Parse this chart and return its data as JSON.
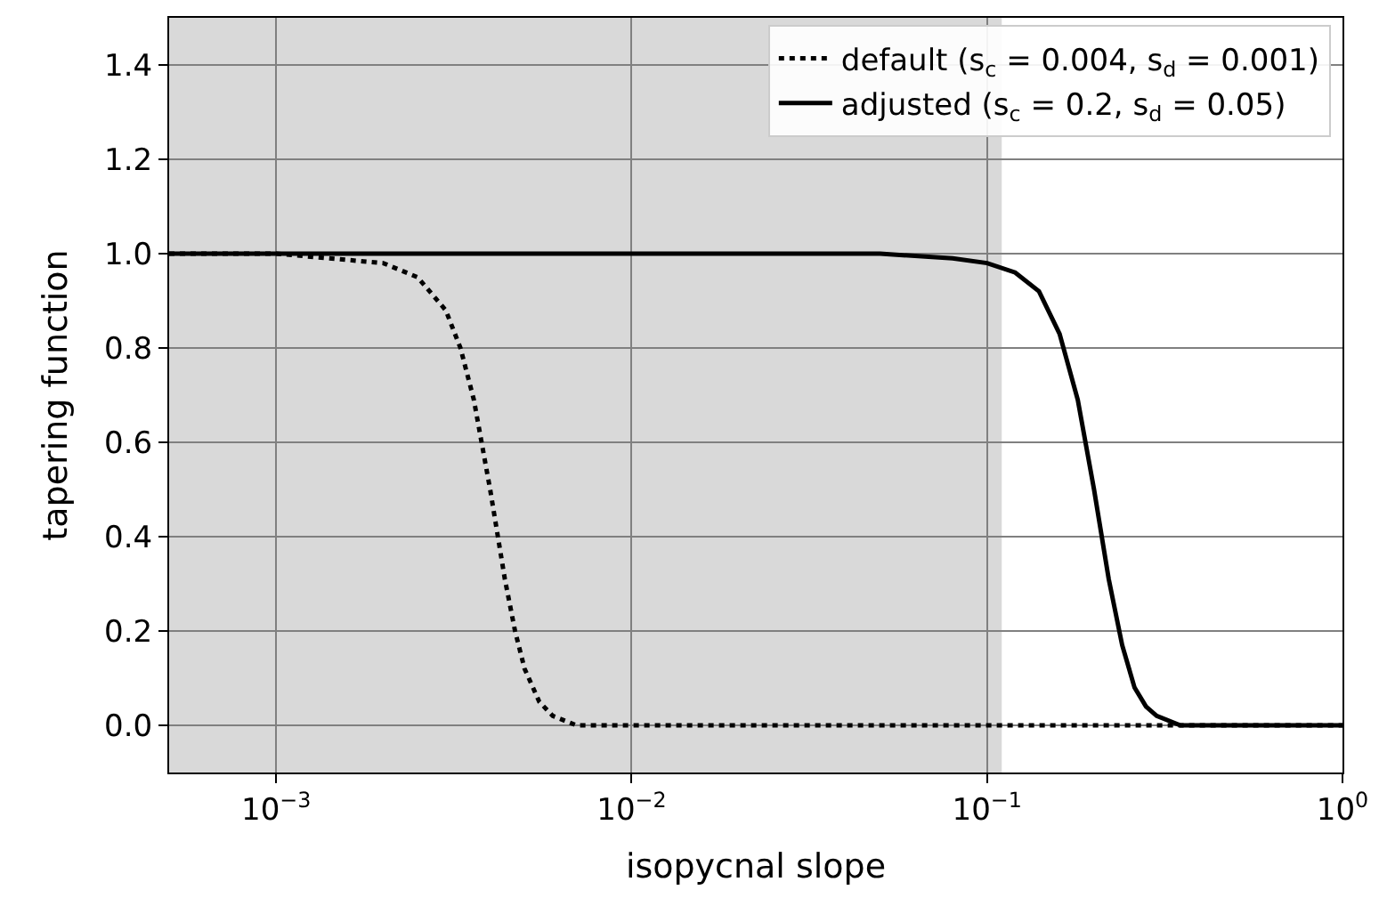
{
  "chart_data": {
    "type": "line",
    "xlabel": "isopycnal slope",
    "ylabel": "tapering function",
    "series": [
      {
        "name": "default (s$_{c}$ = 0.004, s$_{d}$ = 0.001)",
        "color": "#000000",
        "line_style": "dotted",
        "x": [
          0.0005,
          0.001,
          0.002,
          0.0025,
          0.003,
          0.0033,
          0.0036,
          0.004,
          0.0044,
          0.0047,
          0.005,
          0.0055,
          0.006,
          0.007,
          0.01,
          0.1,
          1
        ],
        "values": [
          1.0,
          1.0,
          0.98,
          0.95,
          0.88,
          0.8,
          0.69,
          0.5,
          0.31,
          0.2,
          0.12,
          0.05,
          0.02,
          0.0,
          0.0,
          0.0,
          0.0
        ]
      },
      {
        "name": "adjusted (s$_{c}$ = 0.2, s$_{d}$ = 0.05)",
        "color": "#000000",
        "line_style": "solid",
        "x": [
          0.0005,
          0.01,
          0.05,
          0.08,
          0.1,
          0.12,
          0.14,
          0.16,
          0.18,
          0.2,
          0.22,
          0.24,
          0.26,
          0.28,
          0.3,
          0.35,
          1
        ],
        "values": [
          1.0,
          1.0,
          1.0,
          0.99,
          0.98,
          0.96,
          0.92,
          0.83,
          0.69,
          0.5,
          0.31,
          0.17,
          0.08,
          0.04,
          0.02,
          0.0,
          0.0
        ]
      }
    ],
    "log": "x",
    "xlim": [
      0.0005,
      1
    ],
    "xticks": [
      {
        "value": 0.001,
        "label": "10$^{−3}$"
      },
      {
        "value": 0.01,
        "label": "10$^{−2}$"
      },
      {
        "value": 0.1,
        "label": "10$^{−1}$"
      },
      {
        "value": 1,
        "label": "10$^{0}$"
      }
    ],
    "ylim": [
      -0.1,
      1.5
    ],
    "yticks": [
      {
        "value": 0.0,
        "label": "0.0"
      },
      {
        "value": 0.2,
        "label": "0.2"
      },
      {
        "value": 0.4,
        "label": "0.4"
      },
      {
        "value": 0.6,
        "label": "0.6"
      },
      {
        "value": 0.8,
        "label": "0.8"
      },
      {
        "value": 1.0,
        "label": "1.0"
      },
      {
        "value": 1.2,
        "label": "1.2"
      },
      {
        "value": 1.4,
        "label": "1.4"
      }
    ],
    "bands": [
      {
        "axis": "x",
        "from": 0.0005,
        "to": 0.11,
        "color": "#d9d9d9"
      }
    ],
    "grid": true,
    "legend": "top right",
    "marker": "none"
  }
}
